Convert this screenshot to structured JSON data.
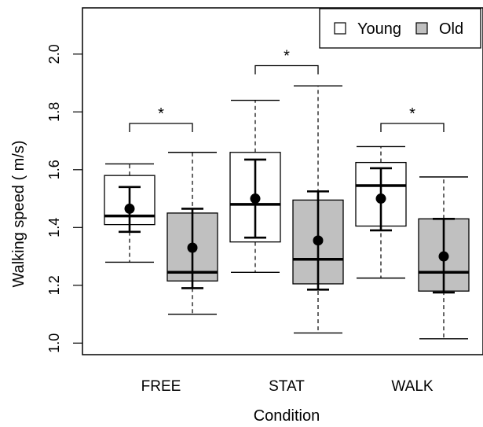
{
  "chart_data": {
    "type": "box",
    "xlabel": "Condition",
    "ylabel": "Walking speed ( m/s)",
    "ylim": [
      0.96,
      2.16
    ],
    "yticks": [
      "1.0",
      "1.2",
      "1.4",
      "1.6",
      "1.8",
      "2.0"
    ],
    "categories": [
      "FREE",
      "STAT",
      "WALK"
    ],
    "legend": {
      "position": "top-right",
      "items": [
        "Young",
        "Old"
      ]
    },
    "series": [
      {
        "name": "Young",
        "color": "#ffffff",
        "boxes": [
          {
            "whisker_low": 1.28,
            "q1": 1.41,
            "median": 1.44,
            "q3": 1.58,
            "whisker_high": 1.62,
            "mean": 1.465,
            "ci_low": 1.385,
            "ci_high": 1.54
          },
          {
            "whisker_low": 1.245,
            "q1": 1.35,
            "median": 1.48,
            "q3": 1.66,
            "whisker_high": 1.84,
            "mean": 1.5,
            "ci_low": 1.365,
            "ci_high": 1.635
          },
          {
            "whisker_low": 1.225,
            "q1": 1.405,
            "median": 1.545,
            "q3": 1.625,
            "whisker_high": 1.68,
            "mean": 1.5,
            "ci_low": 1.39,
            "ci_high": 1.605
          }
        ]
      },
      {
        "name": "Old",
        "color": "#c0c0c0",
        "boxes": [
          {
            "whisker_low": 1.1,
            "q1": 1.215,
            "median": 1.245,
            "q3": 1.45,
            "whisker_high": 1.66,
            "mean": 1.33,
            "ci_low": 1.19,
            "ci_high": 1.465
          },
          {
            "whisker_low": 1.035,
            "q1": 1.205,
            "median": 1.29,
            "q3": 1.495,
            "whisker_high": 1.89,
            "mean": 1.355,
            "ci_low": 1.185,
            "ci_high": 1.525
          },
          {
            "whisker_low": 1.015,
            "q1": 1.18,
            "median": 1.245,
            "q3": 1.43,
            "whisker_high": 1.575,
            "mean": 1.3,
            "ci_low": 1.175,
            "ci_high": 1.43
          }
        ]
      }
    ],
    "significance": [
      {
        "y": 1.76,
        "label": "*"
      },
      {
        "y": 1.96,
        "label": "*"
      },
      {
        "y": 1.76,
        "label": "*"
      }
    ]
  }
}
